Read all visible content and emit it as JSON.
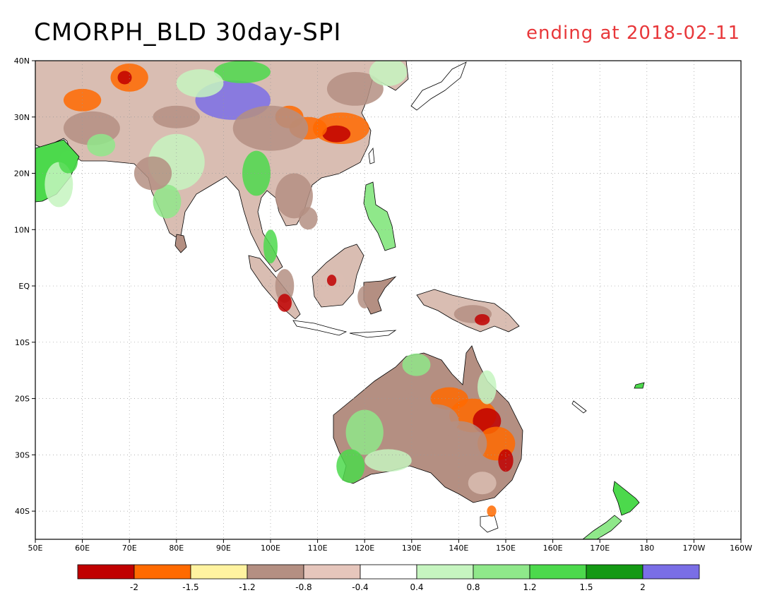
{
  "title": {
    "left": "CMORPH_BLD 30day-SPI",
    "right": "ending at 2018-02-11",
    "right_color": "#e8373a"
  },
  "map": {
    "lon_range": [
      50,
      200
    ],
    "lat_range": [
      -45,
      40
    ],
    "grid": true,
    "lon_ticks": [
      {
        "lon": 50,
        "label": "50E"
      },
      {
        "lon": 60,
        "label": "60E"
      },
      {
        "lon": 70,
        "label": "70E"
      },
      {
        "lon": 80,
        "label": "80E"
      },
      {
        "lon": 90,
        "label": "90E"
      },
      {
        "lon": 100,
        "label": "100E"
      },
      {
        "lon": 110,
        "label": "110E"
      },
      {
        "lon": 120,
        "label": "120E"
      },
      {
        "lon": 130,
        "label": "130E"
      },
      {
        "lon": 140,
        "label": "140E"
      },
      {
        "lon": 150,
        "label": "150E"
      },
      {
        "lon": 160,
        "label": "160E"
      },
      {
        "lon": 170,
        "label": "170E"
      },
      {
        "lon": 180,
        "label": "180"
      },
      {
        "lon": 190,
        "label": "170W"
      },
      {
        "lon": 200,
        "label": "160W"
      }
    ],
    "lat_ticks": [
      {
        "lat": 40,
        "label": "40N"
      },
      {
        "lat": 30,
        "label": "30N"
      },
      {
        "lat": 20,
        "label": "20N"
      },
      {
        "lat": 10,
        "label": "10N"
      },
      {
        "lat": 0,
        "label": "EQ"
      },
      {
        "lat": -10,
        "label": "10S"
      },
      {
        "lat": -20,
        "label": "20S"
      },
      {
        "lat": -30,
        "label": "30S"
      },
      {
        "lat": -40,
        "label": "40S"
      }
    ],
    "colors": {
      "brown": "#b48f82",
      "tan": "#d9bdb2",
      "red": "#c00000",
      "orange": "#ff6a00",
      "yellow": "#fff3a0",
      "green_light": "#c6f5c0",
      "green_mid": "#8fe88a",
      "green": "#4cd94c",
      "green_dark": "#149914",
      "purple": "#7a6ee6"
    }
  },
  "colorbar": {
    "colors": [
      "#c00000",
      "#ff6a00",
      "#fff3a0",
      "#b48f82",
      "#e6c6bc",
      "#ffffff",
      "#c6f5c0",
      "#8fe88a",
      "#4cd94c",
      "#149914",
      "#7a6ee6"
    ],
    "labels": [
      "-2",
      "-1.5",
      "-1.2",
      "-0.8",
      "-0.4",
      "0.4",
      "0.8",
      "1.2",
      "1.5",
      "2"
    ]
  }
}
